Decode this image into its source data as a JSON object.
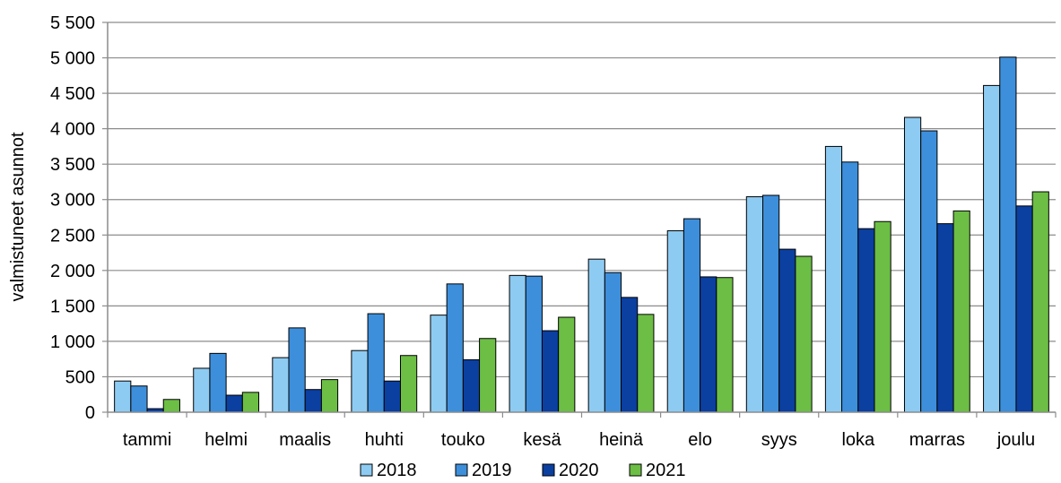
{
  "chart_data": {
    "type": "bar",
    "ylabel": "valmistuneet  asunnot",
    "xlabel": "",
    "ylim": [
      0,
      5500
    ],
    "y_ticks": [
      0,
      500,
      1000,
      1500,
      2000,
      2500,
      3000,
      3500,
      4000,
      4500,
      5000,
      5500
    ],
    "y_tick_labels": [
      "0",
      "500",
      "1 000",
      "1 500",
      "2 000",
      "2 500",
      "3 000",
      "3 500",
      "4 000",
      "4 500",
      "5 000",
      "5 500"
    ],
    "grid": true,
    "legend_position": "bottom",
    "categories": [
      "tammi",
      "helmi",
      "maalis",
      "huhti",
      "touko",
      "kesä",
      "heinä",
      "elo",
      "syys",
      "loka",
      "marras",
      "joulu"
    ],
    "series": [
      {
        "name": "2018",
        "color": "#8ecbf2",
        "values": [
          440,
          620,
          770,
          870,
          1370,
          1930,
          2160,
          2560,
          3040,
          3750,
          4160,
          4610
        ]
      },
      {
        "name": "2019",
        "color": "#3d8fdb",
        "values": [
          370,
          830,
          1190,
          1390,
          1810,
          1920,
          1970,
          2730,
          3060,
          3530,
          3970,
          5010
        ]
      },
      {
        "name": "2020",
        "color": "#0b3fa0",
        "values": [
          50,
          240,
          320,
          440,
          740,
          1150,
          1620,
          1910,
          2300,
          2590,
          2660,
          2910
        ]
      },
      {
        "name": "2021",
        "color": "#6cbe45",
        "values": [
          180,
          280,
          460,
          800,
          1040,
          1340,
          1380,
          1900,
          2200,
          2690,
          2840,
          3110
        ]
      }
    ]
  }
}
